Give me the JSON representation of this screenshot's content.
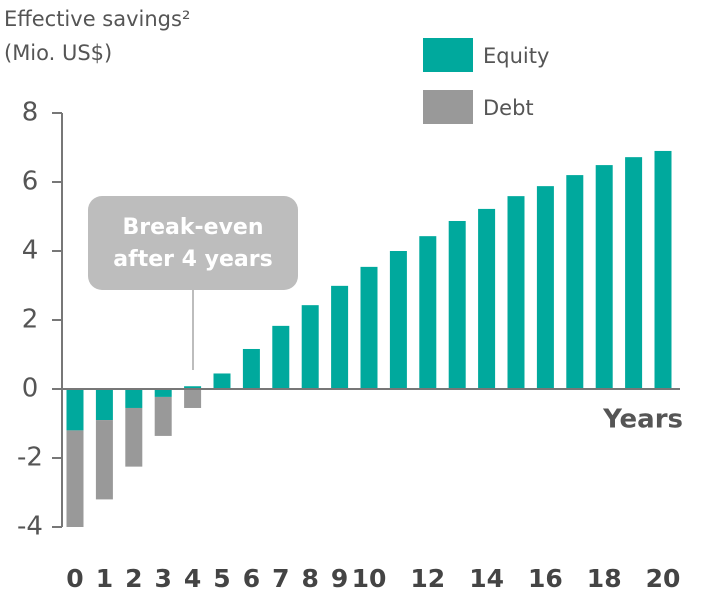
{
  "chart_data": {
    "type": "stacked_bar",
    "y_label": [
      "Effective savings²",
      "(Mio. US$)"
    ],
    "x_label": "Years",
    "annotation": [
      "Break-even",
      "after 4 years"
    ],
    "categories": [
      "0",
      "1",
      "2",
      "3",
      "4",
      "5",
      "6",
      "7",
      "8",
      "9",
      "10",
      null,
      "12",
      null,
      "14",
      null,
      "16",
      null,
      "18",
      null,
      "20"
    ],
    "series": [
      {
        "name": "Equity",
        "color": "#00a99d",
        "values": [
          -1.2,
          -0.9,
          -0.55,
          -0.23,
          0.08,
          0.45,
          1.16,
          1.83,
          2.43,
          2.99,
          3.54,
          4.0,
          4.43,
          4.87,
          5.22,
          5.59,
          5.88,
          6.2,
          6.49,
          6.72,
          6.9
        ]
      },
      {
        "name": "Debt",
        "color": "#999999",
        "values": [
          -2.8,
          -2.3,
          -1.7,
          -1.13,
          -0.55,
          0,
          0,
          0,
          0,
          0,
          0,
          0,
          0,
          0,
          0,
          0,
          0,
          0,
          0,
          0,
          0
        ]
      }
    ],
    "ylim": [
      -4,
      8
    ],
    "yticks": [
      -4,
      -2,
      0,
      2,
      4,
      6,
      8
    ]
  }
}
